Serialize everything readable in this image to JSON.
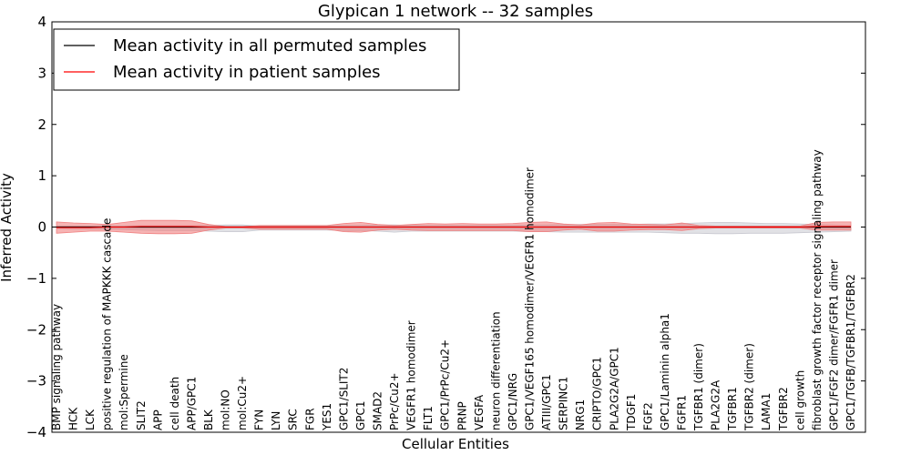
{
  "chart_data": {
    "type": "line",
    "title": "Glypican 1 network -- 32 samples",
    "xlabel": "Cellular Entities",
    "ylabel": "Inferred Activity",
    "ylim": [
      -4,
      4
    ],
    "yticks": [
      -4,
      -3,
      -2,
      -1,
      0,
      1,
      2,
      3,
      4
    ],
    "grid": false,
    "legend_placement": "top-left",
    "categories": [
      "BMP signaling pathway",
      "HCK",
      "LCK",
      "positive regulation of MAPKKK cascade",
      "mol:Spermine",
      "SLIT2",
      "APP",
      "cell death",
      "APP/GPC1",
      "BLK",
      "mol:NO",
      "mol:Cu2+",
      "FYN",
      "LYN",
      "SRC",
      "FGR",
      "YES1",
      "GPC1/SLIT2",
      "GPC1",
      "SMAD2",
      "PrPc/Cu2+",
      "VEGFR1 homodimer",
      "FLT1",
      "GPC1/PrPc/Cu2+",
      "PRNP",
      "VEGFA",
      "neuron differentiation",
      "GPC1/NRG",
      "GPC1/VEGF165 homodimer/VEGFR1 homodimer",
      "ATIII/GPC1",
      "SERPINC1",
      "NRG1",
      "CRIPTO/GPC1",
      "PLA2G2A/GPC1",
      "TDGF1",
      "FGF2",
      "GPC1/Laminin alpha1",
      "FGFR1",
      "TGFBR1 (dimer)",
      "PLA2G2A",
      "TGFBR1",
      "TGFBR2 (dimer)",
      "LAMA1",
      "TGFBR2",
      "cell growth",
      "fibroblast growth factor receptor signaling pathway",
      "GPC1/FGF2 dimer/FGFR1 dimer",
      "GPC1/TGFB/TGFBR1/TGFBR2"
    ],
    "series": [
      {
        "name": "Mean activity in all permuted samples",
        "color": "#000000",
        "band_color": "#c8c8d0",
        "values": [
          0,
          0,
          0,
          0,
          0,
          0,
          0,
          0,
          0,
          0,
          0,
          0,
          0,
          0,
          0,
          0,
          0,
          0,
          0,
          0,
          0,
          0,
          0,
          0,
          0,
          0,
          0,
          0,
          0,
          0,
          0,
          0,
          0,
          0,
          0,
          0,
          0,
          0,
          0,
          0,
          0,
          0,
          0,
          0,
          0,
          0,
          0,
          0
        ],
        "upper": [
          0.02,
          0.02,
          0.02,
          0.02,
          0.02,
          0.03,
          0.03,
          0.03,
          0.03,
          0.03,
          0.04,
          0.04,
          0.02,
          0.02,
          0.02,
          0.02,
          0.02,
          0.03,
          0.03,
          0.04,
          0.04,
          0.03,
          0.03,
          0.03,
          0.03,
          0.03,
          0.03,
          0.03,
          0.04,
          0.04,
          0.05,
          0.05,
          0.05,
          0.05,
          0.05,
          0.06,
          0.06,
          0.07,
          0.08,
          0.09,
          0.09,
          0.08,
          0.07,
          0.07,
          0.06,
          0.05,
          0.04,
          0.03
        ],
        "lower": [
          -0.03,
          -0.04,
          -0.04,
          -0.04,
          -0.05,
          -0.06,
          -0.07,
          -0.07,
          -0.07,
          -0.08,
          -0.09,
          -0.09,
          -0.06,
          -0.06,
          -0.06,
          -0.06,
          -0.06,
          -0.07,
          -0.07,
          -0.08,
          -0.1,
          -0.08,
          -0.08,
          -0.08,
          -0.08,
          -0.08,
          -0.08,
          -0.08,
          -0.09,
          -0.09,
          -0.1,
          -0.1,
          -0.1,
          -0.1,
          -0.1,
          -0.1,
          -0.11,
          -0.12,
          -0.12,
          -0.13,
          -0.13,
          -0.12,
          -0.12,
          -0.12,
          -0.11,
          -0.1,
          -0.09,
          -0.08
        ]
      },
      {
        "name": "Mean activity in patient samples",
        "color": "#ff0000",
        "band_color": "#f08080",
        "values": [
          -0.01,
          -0.01,
          -0.01,
          0,
          0,
          0.01,
          0.01,
          0.01,
          0.01,
          0,
          0,
          0,
          0,
          0,
          0,
          0,
          0,
          0,
          0,
          0,
          0,
          0,
          0,
          0,
          0,
          0,
          0,
          0,
          0,
          0,
          0,
          0,
          0,
          0,
          0,
          0,
          0,
          0,
          0,
          0,
          0,
          0,
          0,
          0,
          0,
          0.01,
          0.01,
          0.01
        ],
        "upper": [
          0.1,
          0.08,
          0.07,
          0.05,
          0.09,
          0.13,
          0.13,
          0.13,
          0.12,
          0.05,
          0.01,
          0.01,
          0.03,
          0.03,
          0.03,
          0.03,
          0.03,
          0.07,
          0.09,
          0.05,
          0.03,
          0.05,
          0.07,
          0.06,
          0.07,
          0.06,
          0.06,
          0.07,
          0.09,
          0.1,
          0.06,
          0.04,
          0.08,
          0.09,
          0.06,
          0.05,
          0.04,
          0.08,
          0.03,
          0.02,
          0.02,
          0.02,
          0.02,
          0.02,
          0.02,
          0.09,
          0.1,
          0.1
        ],
        "lower": [
          -0.12,
          -0.1,
          -0.08,
          -0.08,
          -0.1,
          -0.12,
          -0.13,
          -0.13,
          -0.12,
          -0.06,
          -0.02,
          -0.02,
          -0.04,
          -0.04,
          -0.04,
          -0.04,
          -0.04,
          -0.09,
          -0.1,
          -0.06,
          -0.04,
          -0.06,
          -0.07,
          -0.07,
          -0.07,
          -0.07,
          -0.07,
          -0.07,
          -0.09,
          -0.09,
          -0.06,
          -0.04,
          -0.08,
          -0.08,
          -0.06,
          -0.05,
          -0.05,
          -0.07,
          -0.03,
          -0.02,
          -0.02,
          -0.02,
          -0.02,
          -0.02,
          -0.02,
          -0.06,
          -0.06,
          -0.06
        ]
      }
    ]
  }
}
